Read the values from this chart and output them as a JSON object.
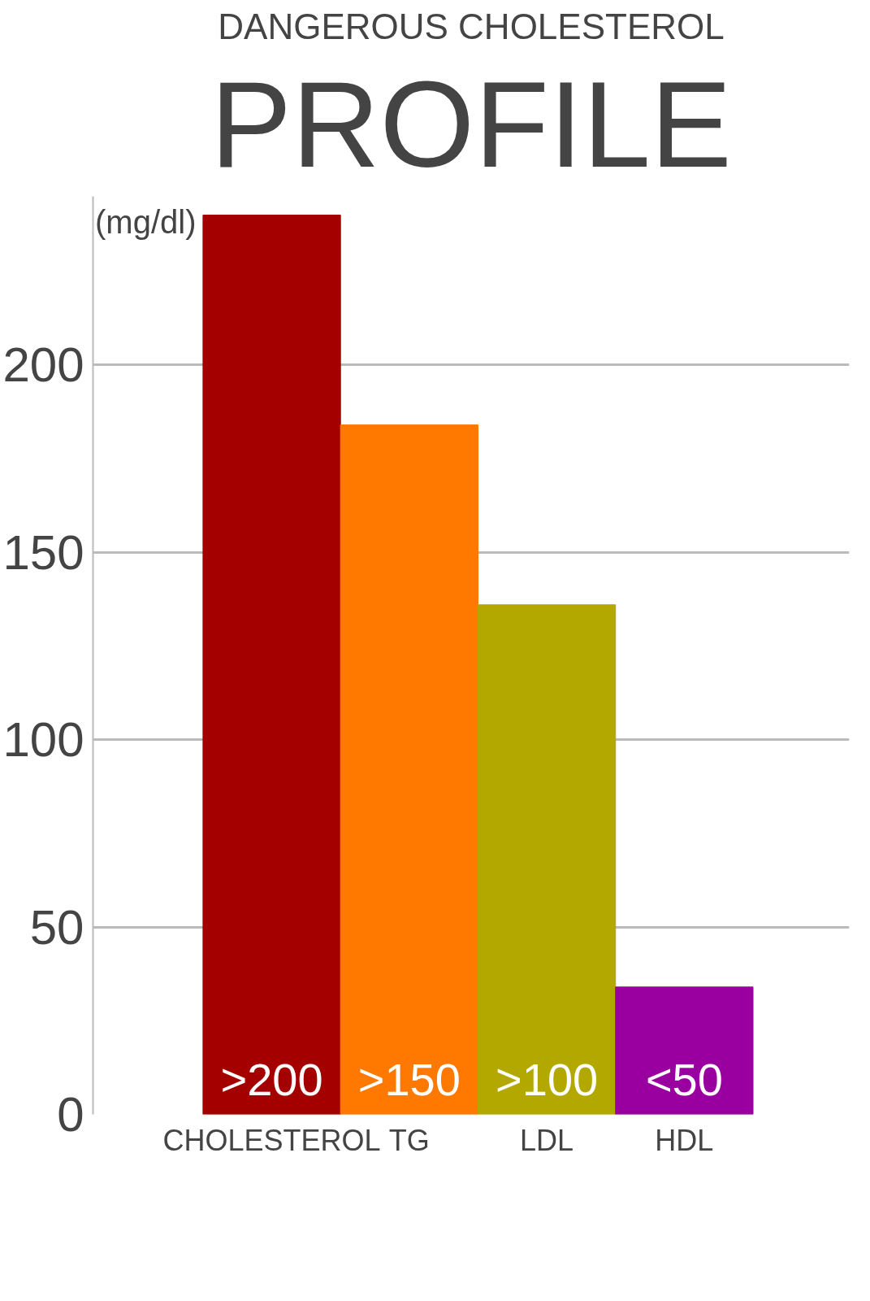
{
  "chart_data": {
    "type": "bar",
    "title": "DANGEROUS CHOLESTEROL",
    "subtitle": "PROFILE",
    "ylabel": "(mg/dl)",
    "categories": [
      "CHOLESTEROL",
      "TG",
      "LDL",
      "HDL"
    ],
    "values": [
      240,
      184,
      136,
      34
    ],
    "colors": [
      "#a50000",
      "#ff7800",
      "#b3a800",
      "#9a00a0"
    ],
    "value_labels": [
      ">200",
      ">150",
      ">100",
      "<50"
    ],
    "ylim": [
      0,
      245
    ],
    "yticks": [
      0,
      50,
      100,
      150,
      200
    ],
    "grid": "y"
  }
}
